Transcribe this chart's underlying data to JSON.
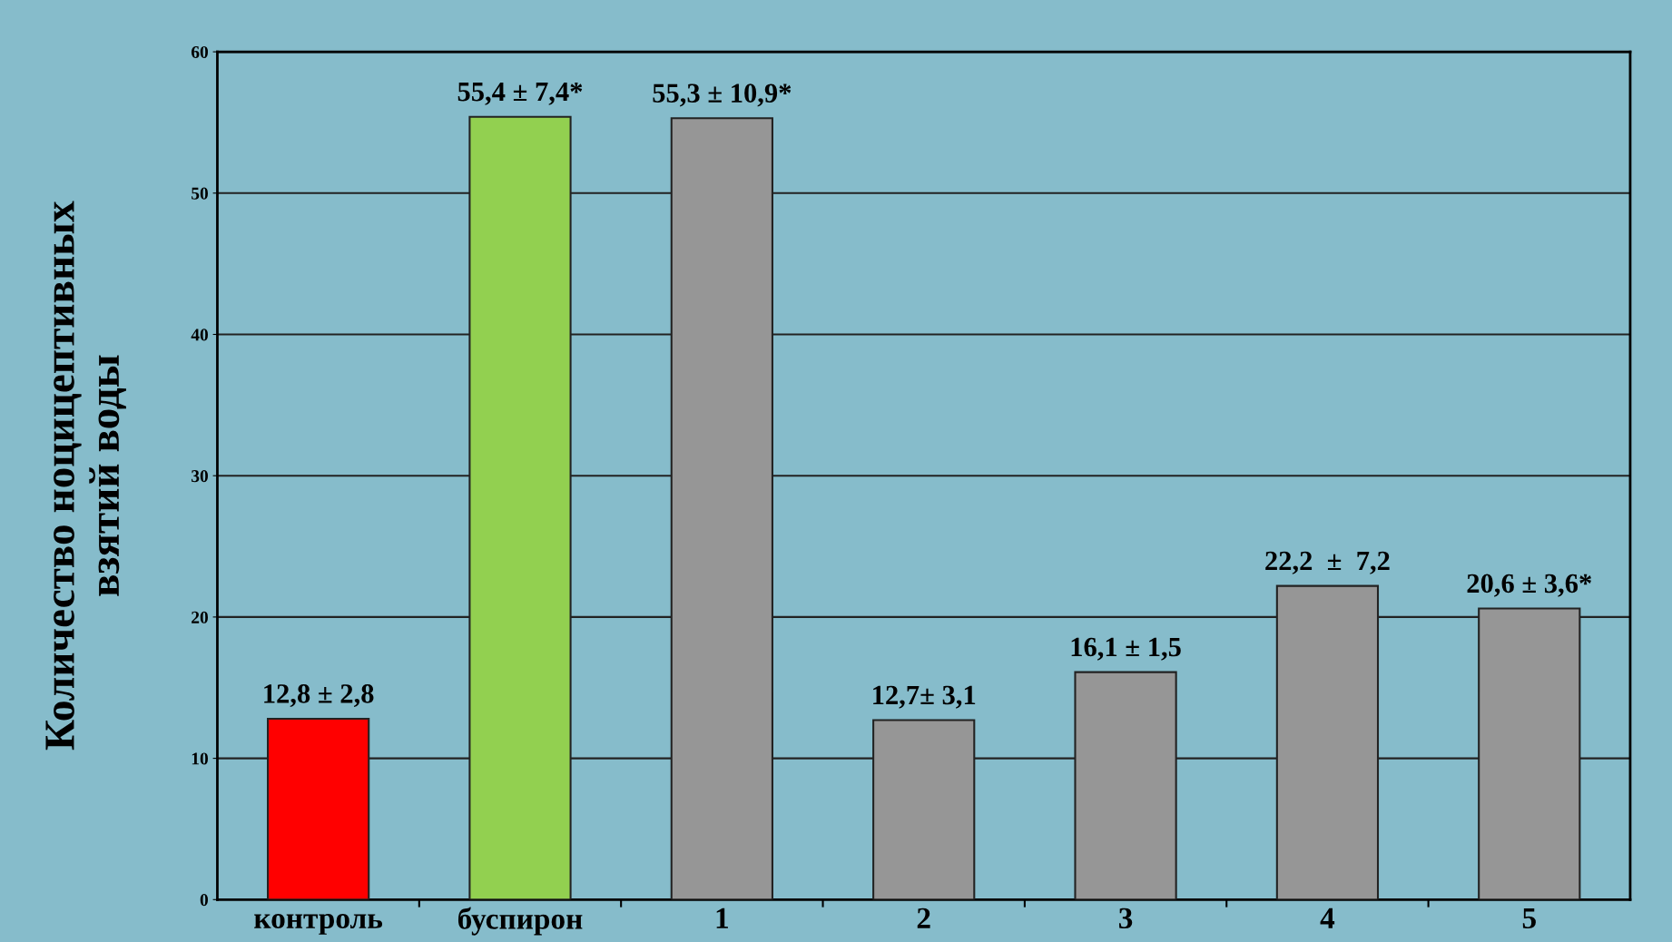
{
  "chart_data": {
    "type": "bar",
    "ylabel": "Количество ноцицептивных\nвзятий воды",
    "categories": [
      "контроль",
      "буспирон",
      "1",
      "2",
      "3",
      "4",
      "5"
    ],
    "values": [
      12.8,
      55.4,
      55.3,
      12.7,
      16.1,
      22.2,
      20.6
    ],
    "colors": [
      "#ff0000",
      "#92d050",
      "#969696",
      "#969696",
      "#969696",
      "#969696",
      "#969696"
    ],
    "value_labels": [
      "12,8 ± 2,8",
      "55,4 ± 7,4*",
      "55,3 ± 10,9*",
      "12,7± 3,1",
      "16,1 ± 1,5",
      "22,2  ±  7,2",
      "20,6 ± 3,6*"
    ],
    "ylim": [
      0,
      60
    ],
    "yticks": [
      0,
      10,
      20,
      30,
      40,
      50,
      60
    ],
    "grid": "y",
    "legend": false
  }
}
